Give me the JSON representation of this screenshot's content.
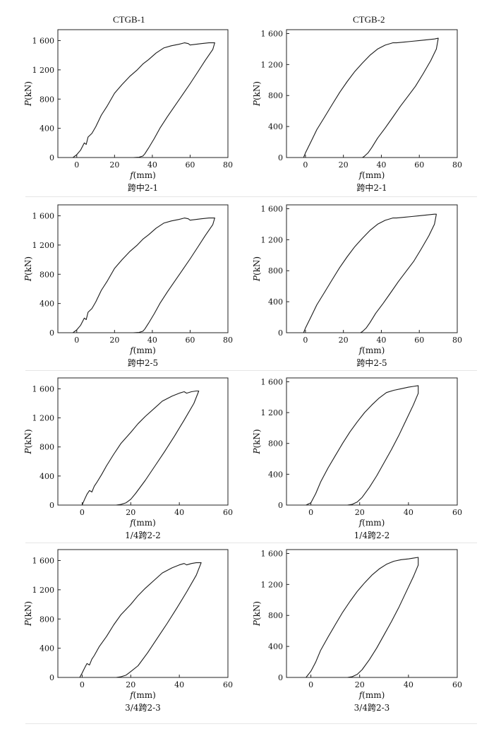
{
  "figure": {
    "columns": [
      "CTGB-1",
      "CTGB-2"
    ]
  },
  "chart_data": [
    {
      "type": "line",
      "column": "CTGB-1",
      "caption": "跨中2-1",
      "xlabel_var": "f",
      "xlabel_unit": "(mm)",
      "ylabel_var": "P",
      "ylabel_unit": "(kN)",
      "xlim": [
        -10,
        80
      ],
      "ylim": [
        0,
        1750
      ],
      "xticks": [
        0,
        20,
        40,
        60,
        80
      ],
      "yticks": [
        0,
        400,
        800,
        1200,
        1600
      ],
      "ytick_labels": [
        "0",
        "400",
        "800",
        "1 200",
        "1 600"
      ],
      "series": [
        {
          "x": [
            -2,
            0,
            2,
            3,
            4,
            5,
            6,
            8,
            10,
            13,
            16,
            20,
            24,
            28,
            32,
            35,
            38,
            42,
            46,
            50,
            54,
            57,
            59,
            60,
            63,
            66,
            70,
            73,
            72,
            68,
            64,
            60,
            56,
            52,
            48,
            44,
            41,
            38,
            36,
            35,
            33,
            30
          ],
          "y": [
            0,
            40,
            100,
            150,
            200,
            180,
            280,
            330,
            420,
            580,
            700,
            880,
            1000,
            1110,
            1200,
            1280,
            1340,
            1430,
            1500,
            1530,
            1550,
            1570,
            1560,
            1540,
            1550,
            1560,
            1570,
            1570,
            1480,
            1330,
            1170,
            1010,
            860,
            710,
            560,
            400,
            260,
            130,
            50,
            20,
            5,
            0
          ]
        }
      ]
    },
    {
      "type": "line",
      "column": "CTGB-2",
      "caption": "跨中2-1",
      "xlabel_var": "f",
      "xlabel_unit": "(mm)",
      "ylabel_var": "P",
      "ylabel_unit": "(kN)",
      "xlim": [
        -10,
        80
      ],
      "ylim": [
        0,
        1650
      ],
      "xticks": [
        0,
        20,
        40,
        60,
        80
      ],
      "xtick_labels": [
        "0",
        "20",
        "40",
        "60",
        "80"
      ],
      "yticks": [
        0,
        400,
        800,
        1200,
        1600
      ],
      "ytick_labels": [
        "0",
        "400",
        "800",
        "1 200",
        "1 600"
      ],
      "series": [
        {
          "x": [
            -1,
            0,
            3,
            6,
            10,
            14,
            18,
            22,
            26,
            30,
            34,
            38,
            42,
            46,
            48,
            52,
            56,
            60,
            64,
            68,
            70,
            69,
            66,
            62,
            58,
            54,
            50,
            46,
            42,
            38,
            35,
            33,
            31,
            30
          ],
          "y": [
            0,
            60,
            210,
            360,
            520,
            680,
            840,
            980,
            1110,
            1220,
            1320,
            1400,
            1450,
            1480,
            1480,
            1490,
            1500,
            1510,
            1520,
            1530,
            1540,
            1400,
            1250,
            1080,
            920,
            790,
            660,
            520,
            380,
            250,
            130,
            60,
            15,
            0
          ]
        }
      ]
    },
    {
      "type": "line",
      "column": "CTGB-1",
      "caption": "跨中2-5",
      "xlabel_var": "f",
      "xlabel_unit": "(mm)",
      "ylabel_var": "P",
      "ylabel_unit": "(kN)",
      "xlim": [
        -10,
        80
      ],
      "ylim": [
        0,
        1750
      ],
      "xticks": [
        0,
        20,
        40,
        60,
        80
      ],
      "yticks": [
        0,
        400,
        800,
        1200,
        1600
      ],
      "ytick_labels": [
        "0",
        "400",
        "800",
        "1 200",
        "1 600"
      ],
      "series": [
        {
          "x": [
            -2,
            0,
            2,
            3,
            4,
            5,
            6,
            8,
            10,
            13,
            16,
            20,
            24,
            28,
            32,
            35,
            38,
            42,
            46,
            50,
            54,
            57,
            59,
            60,
            63,
            66,
            70,
            73,
            72,
            68,
            64,
            60,
            56,
            52,
            48,
            44,
            41,
            38,
            36,
            35,
            33,
            30
          ],
          "y": [
            0,
            40,
            100,
            150,
            200,
            180,
            280,
            330,
            420,
            580,
            700,
            880,
            1000,
            1110,
            1200,
            1280,
            1340,
            1430,
            1500,
            1530,
            1550,
            1570,
            1560,
            1540,
            1550,
            1560,
            1570,
            1570,
            1480,
            1330,
            1170,
            1010,
            860,
            710,
            560,
            400,
            260,
            130,
            50,
            20,
            5,
            0
          ]
        }
      ]
    },
    {
      "type": "line",
      "column": "CTGB-2",
      "caption": "跨中2-5",
      "xlabel_var": "f",
      "xlabel_unit": "(mm)",
      "ylabel_var": "P",
      "ylabel_unit": "(kN)",
      "xlim": [
        -10,
        80
      ],
      "ylim": [
        0,
        1650
      ],
      "xticks": [
        0,
        20,
        40,
        60,
        80
      ],
      "xtick_labels": [
        "0",
        "20",
        "40",
        "60",
        "80"
      ],
      "yticks": [
        0,
        400,
        800,
        1200,
        1600
      ],
      "ytick_labels": [
        "0",
        "400",
        "800",
        "1 200",
        "1 600"
      ],
      "series": [
        {
          "x": [
            -1,
            0,
            3,
            6,
            10,
            14,
            18,
            22,
            26,
            30,
            34,
            38,
            42,
            46,
            48,
            52,
            56,
            60,
            64,
            68,
            69,
            68,
            65,
            61,
            57,
            53,
            49,
            45,
            41,
            37,
            34,
            32,
            30,
            29
          ],
          "y": [
            0,
            60,
            210,
            360,
            520,
            680,
            840,
            980,
            1110,
            1220,
            1320,
            1400,
            1450,
            1480,
            1480,
            1490,
            1500,
            1510,
            1520,
            1530,
            1530,
            1400,
            1250,
            1080,
            920,
            790,
            660,
            520,
            380,
            250,
            130,
            60,
            15,
            0
          ]
        }
      ]
    },
    {
      "type": "line",
      "column": "CTGB-1",
      "caption": "1/4跨2-2",
      "xlabel_var": "f",
      "xlabel_unit": "(mm)",
      "ylabel_var": "P",
      "ylabel_unit": "(kN)",
      "xlim": [
        -10,
        60
      ],
      "ylim": [
        0,
        1750
      ],
      "xticks": [
        0,
        20,
        40,
        60
      ],
      "yticks": [
        0,
        400,
        800,
        1200,
        1600
      ],
      "ytick_labels": [
        "0",
        "400",
        "800",
        "1 200",
        "1 600"
      ],
      "series": [
        {
          "x": [
            0,
            1,
            2,
            3,
            4,
            5,
            6,
            8,
            10,
            13,
            16,
            20,
            23,
            26,
            30,
            33,
            37,
            40,
            42,
            43,
            45,
            47,
            48,
            46,
            42,
            38,
            34,
            30,
            26,
            22,
            20,
            18,
            16,
            14
          ],
          "y": [
            0,
            80,
            150,
            200,
            180,
            260,
            310,
            420,
            540,
            700,
            850,
            1000,
            1120,
            1220,
            1340,
            1430,
            1500,
            1540,
            1560,
            1540,
            1560,
            1570,
            1570,
            1400,
            1170,
            950,
            740,
            540,
            340,
            160,
            80,
            30,
            10,
            0
          ]
        }
      ]
    },
    {
      "type": "line",
      "column": "CTGB-2",
      "caption": "1/4跨2-2",
      "xlabel_var": "f",
      "xlabel_unit": "(mm)",
      "ylabel_var": "P",
      "ylabel_unit": "(kN)",
      "xlim": [
        -10,
        60
      ],
      "ylim": [
        0,
        1650
      ],
      "xticks": [
        0,
        20,
        40,
        60
      ],
      "yticks": [
        0,
        400,
        800,
        1200,
        1600
      ],
      "ytick_labels": [
        "0",
        "400",
        "800",
        "1 200",
        "1 600"
      ],
      "series": [
        {
          "x": [
            -2,
            0,
            2,
            4,
            7,
            10,
            13,
            16,
            19,
            22,
            25,
            28,
            31,
            34,
            37,
            40,
            42,
            44,
            44,
            42,
            39,
            36,
            33,
            30,
            27,
            24,
            21,
            19,
            17,
            15
          ],
          "y": [
            0,
            30,
            150,
            300,
            480,
            640,
            800,
            950,
            1080,
            1200,
            1300,
            1390,
            1460,
            1490,
            1510,
            1530,
            1540,
            1550,
            1450,
            1300,
            1100,
            900,
            720,
            550,
            380,
            230,
            100,
            40,
            10,
            0
          ]
        }
      ]
    },
    {
      "type": "line",
      "column": "CTGB-1",
      "caption": "3/4跨2-3",
      "xlabel_var": "f",
      "xlabel_unit": "(mm)",
      "ylabel_var": "P",
      "ylabel_unit": "(kN)",
      "xlim": [
        -10,
        60
      ],
      "ylim": [
        0,
        1750
      ],
      "xticks": [
        0,
        20,
        40,
        60
      ],
      "yticks": [
        0,
        400,
        800,
        1200,
        1600
      ],
      "ytick_labels": [
        "0",
        "400",
        "800",
        "1 200",
        "1 600"
      ],
      "series": [
        {
          "x": [
            -1,
            0,
            1,
            2,
            3,
            4,
            5,
            7,
            10,
            13,
            16,
            20,
            23,
            26,
            30,
            33,
            37,
            40,
            42,
            43,
            45,
            47,
            49,
            47,
            43,
            39,
            35,
            31,
            27,
            23,
            20,
            18,
            16,
            14
          ],
          "y": [
            0,
            60,
            130,
            190,
            170,
            250,
            300,
            420,
            560,
            720,
            860,
            1000,
            1120,
            1220,
            1340,
            1430,
            1500,
            1540,
            1560,
            1540,
            1560,
            1570,
            1570,
            1400,
            1170,
            950,
            740,
            540,
            340,
            160,
            80,
            30,
            10,
            0
          ]
        }
      ]
    },
    {
      "type": "line",
      "column": "CTGB-2",
      "caption": "3/4跨2-3",
      "xlabel_var": "f",
      "xlabel_unit": "(mm)",
      "ylabel_var": "P",
      "ylabel_unit": "(kN)",
      "xlim": [
        -10,
        60
      ],
      "ylim": [
        0,
        1650
      ],
      "xticks": [
        0,
        20,
        40,
        60
      ],
      "yticks": [
        0,
        400,
        800,
        1200,
        1600
      ],
      "ytick_labels": [
        "0",
        "400",
        "800",
        "1 200",
        "1 600"
      ],
      "series": [
        {
          "x": [
            -2,
            0,
            2,
            4,
            7,
            10,
            13,
            16,
            19,
            22,
            25,
            28,
            31,
            34,
            37,
            40,
            42,
            44,
            44,
            42,
            39,
            36,
            33,
            30,
            27,
            24,
            21,
            19,
            17,
            15
          ],
          "y": [
            0,
            80,
            200,
            350,
            520,
            680,
            840,
            980,
            1110,
            1220,
            1320,
            1400,
            1460,
            1500,
            1520,
            1530,
            1540,
            1550,
            1450,
            1300,
            1100,
            900,
            720,
            550,
            380,
            230,
            100,
            40,
            10,
            0
          ]
        }
      ]
    }
  ]
}
